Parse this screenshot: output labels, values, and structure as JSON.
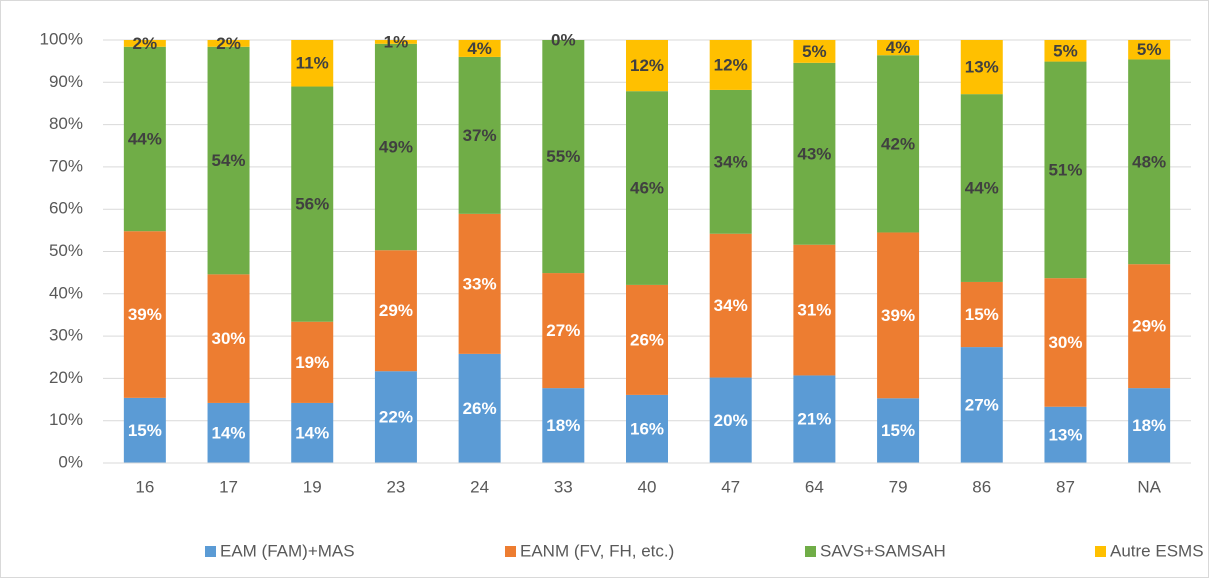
{
  "chart_data": {
    "type": "stacked_bar",
    "categories": [
      "16",
      "17",
      "19",
      "23",
      "24",
      "33",
      "40",
      "47",
      "64",
      "79",
      "86",
      "87",
      "NA"
    ],
    "series": [
      {
        "name": "EAM (FAM)+MAS",
        "color": "#5b9bd5",
        "label_color": "#ffffff",
        "values": [
          15.4,
          14.2,
          14.2,
          21.7,
          25.8,
          17.7,
          16.1,
          20.2,
          20.7,
          15.3,
          27.4,
          13.3,
          17.7
        ],
        "value_labels": [
          "15%",
          "14%",
          "14%",
          "22%",
          "26%",
          "18%",
          "16%",
          "20%",
          "21%",
          "15%",
          "27%",
          "13%",
          "18%"
        ]
      },
      {
        "name": "EANM (FV, FH, etc.)",
        "color": "#ed7d31",
        "label_color": "#ffffff",
        "values": [
          39.4,
          30.4,
          19.2,
          28.6,
          33.1,
          27.2,
          26.0,
          34.0,
          30.9,
          39.2,
          15.4,
          30.4,
          29.3
        ],
        "value_labels": [
          "39%",
          "30%",
          "19%",
          "29%",
          "33%",
          "27%",
          "26%",
          "34%",
          "31%",
          "39%",
          "15%",
          "30%",
          "29%"
        ]
      },
      {
        "name": "SAVS+SAMSAH",
        "color": "#70ad47",
        "label_color": "#404040",
        "values": [
          43.6,
          53.8,
          55.6,
          48.8,
          37.1,
          55.1,
          45.8,
          34.0,
          43.0,
          41.9,
          44.4,
          51.2,
          48.4
        ],
        "value_labels": [
          "44%",
          "54%",
          "56%",
          "49%",
          "37%",
          "55%",
          "46%",
          "34%",
          "43%",
          "42%",
          "44%",
          "51%",
          "48%"
        ]
      },
      {
        "name": "Autre ESMS",
        "color": "#ffc000",
        "label_color": "#404040",
        "values": [
          1.6,
          1.6,
          11.0,
          0.9,
          4.0,
          0,
          12.1,
          11.8,
          5.4,
          3.6,
          12.8,
          5.1,
          4.6
        ],
        "value_labels": [
          "2%",
          "2%",
          "11%",
          "1%",
          "4%",
          "0%",
          "12%",
          "12%",
          "5%",
          "4%",
          "13%",
          "5%",
          "5%"
        ]
      }
    ],
    "ylim": [
      0,
      100
    ],
    "yticks": [
      {
        "value": 0,
        "label": "0%"
      },
      {
        "value": 10,
        "label": "10%"
      },
      {
        "value": 20,
        "label": "20%"
      },
      {
        "value": 30,
        "label": "30%"
      },
      {
        "value": 40,
        "label": "40%"
      },
      {
        "value": 50,
        "label": "50%"
      },
      {
        "value": 60,
        "label": "60%"
      },
      {
        "value": 70,
        "label": "70%"
      },
      {
        "value": 80,
        "label": "80%"
      },
      {
        "value": 90,
        "label": "90%"
      },
      {
        "value": 100,
        "label": "100%"
      }
    ],
    "grid": true,
    "legend": "bottom"
  }
}
